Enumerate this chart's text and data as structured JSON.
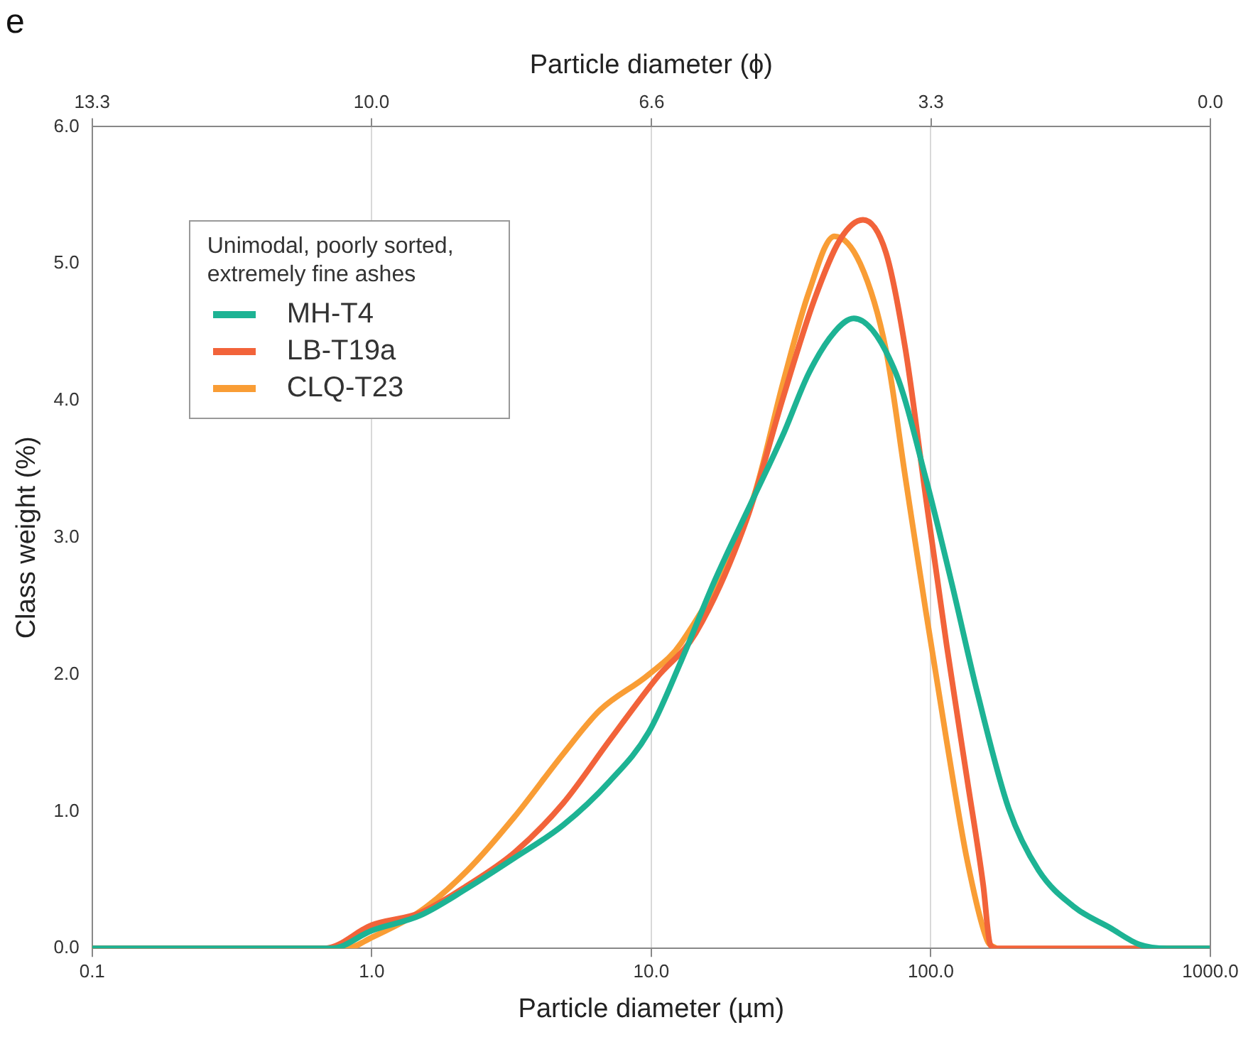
{
  "chart_data": {
    "type": "line",
    "title": "e",
    "xlabel": "Particle diameter (µm)",
    "ylabel": "Class weight (%)",
    "x2label": "Particle diameter (ϕ)",
    "legend_title": "Unimodal, poorly sorted, extremely fine ashes",
    "log": "x",
    "xlim": [
      0.1,
      1000
    ],
    "xticks": [
      {
        "value": 0.1,
        "label": "0.1"
      },
      {
        "value": 1,
        "label": "1.0"
      },
      {
        "value": 10,
        "label": "10.0"
      },
      {
        "value": 100,
        "label": "100.0"
      },
      {
        "value": 1000,
        "label": "1000.0"
      }
    ],
    "x2lim": [
      13.29,
      0
    ],
    "x2ticks": [
      {
        "value": 13.29,
        "label": "13.3"
      },
      {
        "value": 9.97,
        "label": "10.0"
      },
      {
        "value": 6.64,
        "label": "6.6"
      },
      {
        "value": 3.32,
        "label": "3.3"
      },
      {
        "value": 0,
        "label": "0.0"
      }
    ],
    "ylim": [
      0,
      6
    ],
    "yticks": [
      {
        "value": 0,
        "label": "0.0"
      },
      {
        "value": 1,
        "label": "1.0"
      },
      {
        "value": 2,
        "label": "2.0"
      },
      {
        "value": 3,
        "label": "3.0"
      },
      {
        "value": 4,
        "label": "4.0"
      },
      {
        "value": 5,
        "label": "5.0"
      },
      {
        "value": 6,
        "label": "6.0"
      }
    ],
    "grid": "x",
    "legend": "top left",
    "marker": "none",
    "line_style": "solid",
    "series": [
      {
        "name": "MH-T4",
        "color": "#1db394",
        "x": [
          0.1,
          0.72,
          1.0,
          1.49,
          2.2,
          3.24,
          4.84,
          7.1,
          9.8,
          12.8,
          16.9,
          23.1,
          29.6,
          36.6,
          45.2,
          53,
          75,
          96,
          119,
          147,
          190,
          243,
          327,
          438,
          555,
          702,
          1000
        ],
        "values": [
          0,
          0,
          0.13,
          0.24,
          0.44,
          0.66,
          0.9,
          1.22,
          1.58,
          2.1,
          2.69,
          3.28,
          3.75,
          4.2,
          4.5,
          4.6,
          4.2,
          3.43,
          2.66,
          1.86,
          1.02,
          0.57,
          0.3,
          0.15,
          0.03,
          0,
          0
        ]
      },
      {
        "name": "LB-T19a",
        "color": "#f2633a",
        "x": [
          0.1,
          0.68,
          1.0,
          1.49,
          2.2,
          3.24,
          4.84,
          7.1,
          10.5,
          14.4,
          22.1,
          29.6,
          38.2,
          47.5,
          57.2,
          69.1,
          81.2,
          96,
          114,
          135,
          154,
          163,
          171,
          1000
        ],
        "values": [
          0,
          0,
          0.17,
          0.26,
          0.46,
          0.7,
          1.06,
          1.52,
          1.98,
          2.3,
          3.15,
          4.02,
          4.73,
          5.18,
          5.32,
          5.08,
          4.37,
          3.29,
          2.21,
          1.23,
          0.46,
          0.03,
          0,
          0
        ]
      },
      {
        "name": "CLQ-T23",
        "color": "#f99d35",
        "x": [
          0.1,
          0.81,
          1.0,
          1.49,
          2.2,
          3.24,
          4.84,
          6.56,
          9.8,
          12.8,
          23.1,
          29.6,
          36.6,
          45.2,
          55.9,
          69.1,
          81.2,
          96,
          114,
          135,
          159,
          171
        ],
        "values": [
          0,
          0,
          0.08,
          0.27,
          0.57,
          0.96,
          1.42,
          1.74,
          2.0,
          2.23,
          3.28,
          4.13,
          4.79,
          5.2,
          5.0,
          4.37,
          3.43,
          2.46,
          1.51,
          0.64,
          0.06,
          0
        ]
      }
    ]
  }
}
